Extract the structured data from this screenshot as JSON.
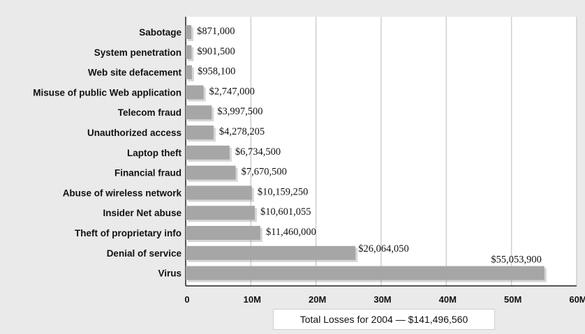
{
  "chart_data": {
    "type": "bar",
    "orientation": "horizontal",
    "categories": [
      "Sabotage",
      "System penetration",
      "Web site defacement",
      "Misuse of public Web application",
      "Telecom fraud",
      "Unauthorized access",
      "Laptop theft",
      "Financial fraud",
      "Abuse of wireless network",
      "Insider Net abuse",
      "Theft of proprietary info",
      "Denial of service",
      "Virus"
    ],
    "values": [
      871000,
      901500,
      958100,
      2747000,
      3997500,
      4278205,
      6734500,
      7670500,
      10159250,
      10601055,
      11460000,
      26064050,
      55053900
    ],
    "value_labels": [
      "$871,000",
      "$901,500",
      "$958,100",
      "$2,747,000",
      "$3,997,500",
      "$4,278,205",
      "$6,734,500",
      "$7,670,500",
      "$10,159,250",
      "$10,601,055",
      "$11,460,000",
      "$26,064,050",
      "$55,053,900"
    ],
    "x_ticks": [
      0,
      10000000,
      20000000,
      30000000,
      40000000,
      50000000,
      60000000
    ],
    "x_tick_labels": [
      "0",
      "10M",
      "20M",
      "30M",
      "40M",
      "50M",
      "60M"
    ],
    "xlim": [
      0,
      60000000
    ],
    "title": "",
    "xlabel": "",
    "ylabel": "",
    "grid": true,
    "bar_color": "#a6a6a6",
    "plot_background": "#ffffff",
    "page_background": "#eaeaea"
  },
  "footer": {
    "total_text": "Total Losses for 2004 — $141,496,560"
  }
}
